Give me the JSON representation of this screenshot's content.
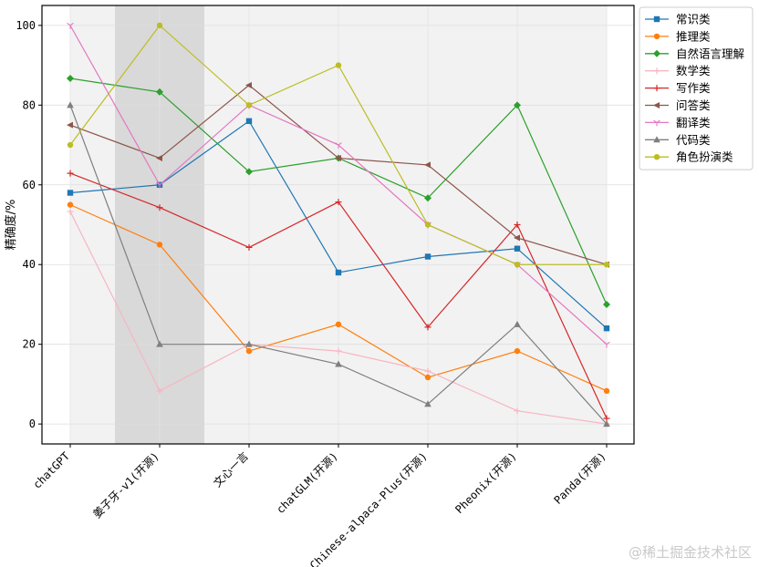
{
  "chart_data": {
    "type": "line",
    "ylabel": "精确度/%",
    "ylim": [
      -5,
      105
    ],
    "yticks": [
      0,
      20,
      40,
      60,
      80,
      100
    ],
    "categories": [
      "chatGPT",
      "姜子牙-v1(开源)",
      "文心一言",
      "chatGLM(开源)",
      "Chinese-alpaca-Plus(开源)",
      "Pheonix(开源)",
      "Panda(开源)"
    ],
    "highlighted_category": "姜子牙-v1(开源)",
    "grid": true,
    "legend_position": "outside top-right",
    "series": [
      {
        "name": "常识类",
        "color": "#1f77b4",
        "marker": "square",
        "values": [
          58,
          60,
          76,
          38,
          42,
          44,
          24
        ]
      },
      {
        "name": "推理类",
        "color": "#ff7f0e",
        "marker": "circle",
        "values": [
          55,
          45,
          18.3,
          25,
          11.7,
          18.3,
          8.3
        ]
      },
      {
        "name": "自然语言理解",
        "color": "#2ca02c",
        "marker": "diamond",
        "values": [
          86.7,
          83.3,
          63.3,
          66.7,
          56.7,
          80,
          30
        ]
      },
      {
        "name": "数学类",
        "color": "#f7b6c2",
        "marker": "plus",
        "values": [
          53.3,
          8.3,
          20,
          18.3,
          13.3,
          3.3,
          0
        ]
      },
      {
        "name": "写作类",
        "color": "#d62728",
        "marker": "plus",
        "values": [
          62.9,
          54.3,
          44.3,
          55.7,
          24.3,
          50,
          1.4
        ]
      },
      {
        "name": "问答类",
        "color": "#8c564b",
        "marker": "triangle-left",
        "values": [
          75,
          66.7,
          85,
          66.7,
          65,
          46.7,
          40
        ]
      },
      {
        "name": "翻译类",
        "color": "#e377c2",
        "marker": "tri-down",
        "values": [
          100,
          60,
          80,
          70,
          50,
          40,
          20
        ]
      },
      {
        "name": "代码类",
        "color": "#7f7f7f",
        "marker": "triangle-up",
        "values": [
          80,
          20,
          20,
          15,
          5,
          25,
          0
        ]
      },
      {
        "name": "角色扮演类",
        "color": "#bcbd22",
        "marker": "circle",
        "values": [
          70,
          100,
          80,
          90,
          50,
          40,
          40
        ]
      }
    ]
  },
  "watermark": "@稀土掘金技术社区"
}
